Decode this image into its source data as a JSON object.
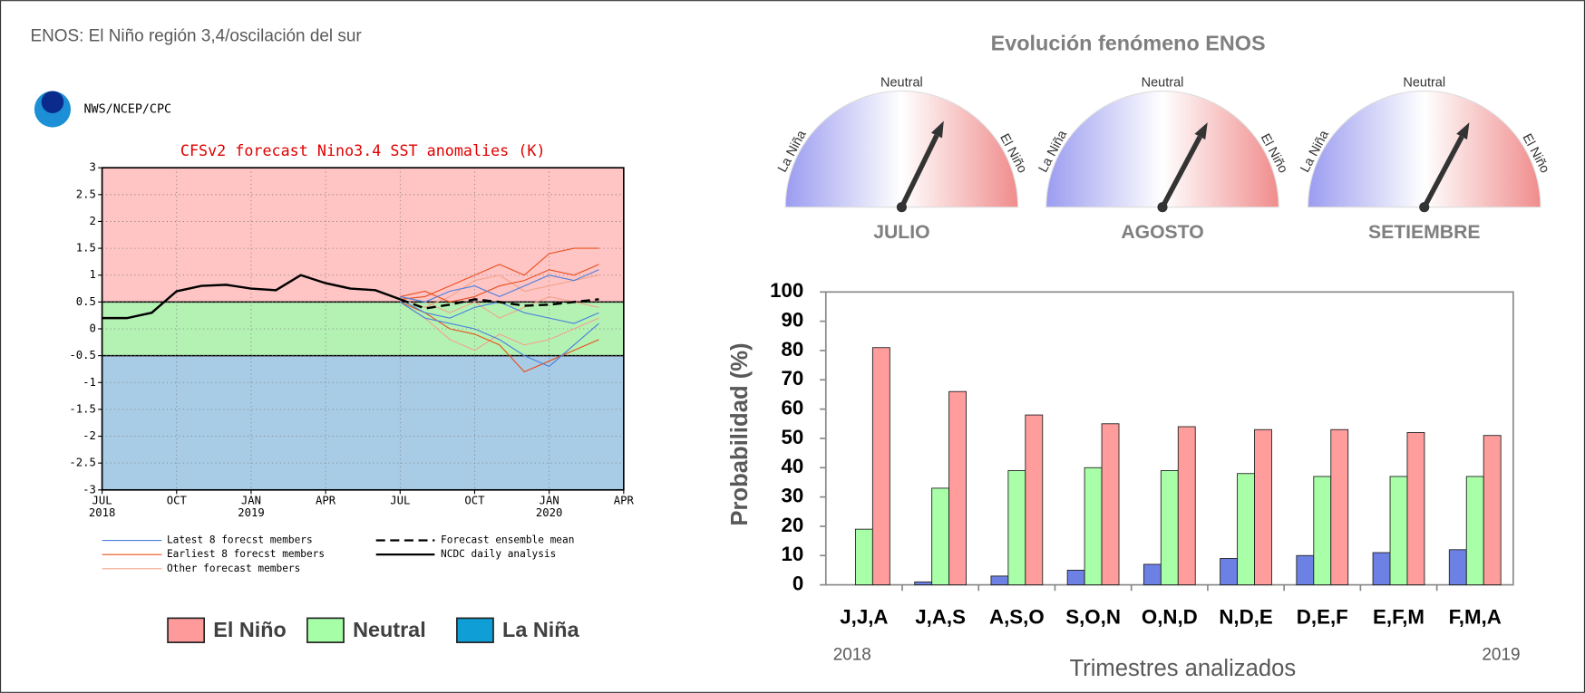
{
  "header": "ENOS: El Niño región 3,4/oscilación del sur",
  "chart_data": [
    {
      "type": "line",
      "source": "NWS/NCEP/CPC",
      "title": "CFSv2 forecast Nino3.4 SST anomalies (K)",
      "xlim": [
        0,
        21
      ],
      "xticks": [
        {
          "value": 0,
          "label": "JUL"
        },
        {
          "value": 3,
          "label": "OCT"
        },
        {
          "value": 6,
          "label": "JAN"
        },
        {
          "value": 9,
          "label": "APR"
        },
        {
          "value": 12,
          "label": "JUL"
        },
        {
          "value": 15,
          "label": "OCT"
        },
        {
          "value": 18,
          "label": "JAN"
        },
        {
          "value": 21,
          "label": "APR"
        }
      ],
      "xtick_years": [
        {
          "value": 0,
          "label": "2018"
        },
        {
          "value": 6,
          "label": "2019"
        },
        {
          "value": 18,
          "label": "2020"
        }
      ],
      "ylim": [
        -3,
        3
      ],
      "yticks": [
        3,
        2.5,
        2,
        1.5,
        1,
        0.5,
        0,
        -0.5,
        -1,
        -1.5,
        -2,
        -2.5,
        -3
      ],
      "grid": true,
      "bands": [
        {
          "name": "El Niño",
          "from": 0.5,
          "to": 3,
          "color": "#ffc4c4",
          "legend_color": "#ff9a9a"
        },
        {
          "name": "Neutral",
          "from": -0.5,
          "to": 0.5,
          "color": "#b4f2b4",
          "legend_color": "#a6ffa6"
        },
        {
          "name": "La Niña",
          "from": -3,
          "to": -0.5,
          "color": "#a8cce6",
          "legend_color": "#0f9ed5"
        }
      ],
      "series": [
        {
          "name": "Other forecast members",
          "color": "#f2a48c",
          "x": [
            12,
            13,
            14,
            15,
            16,
            17,
            18,
            19,
            20
          ],
          "values": [
            [
              0.55,
              0.4,
              0.6,
              0.9,
              1.0,
              0.7,
              0.8,
              0.9,
              1.0
            ],
            [
              0.5,
              0.2,
              -0.2,
              -0.4,
              -0.1,
              -0.3,
              -0.2,
              0.0,
              0.2
            ],
            [
              0.6,
              0.5,
              0.3,
              0.5,
              0.2,
              0.4,
              0.6,
              0.5,
              0.4
            ]
          ]
        },
        {
          "name": "Earliest 8 forecst members",
          "color": "#e8501e",
          "x": [
            12,
            13,
            14,
            15,
            16,
            17,
            18,
            19,
            20
          ],
          "values": [
            [
              0.55,
              0.6,
              0.8,
              1.0,
              1.2,
              1.0,
              1.4,
              1.5,
              1.5
            ],
            [
              0.5,
              0.3,
              0.0,
              -0.1,
              -0.3,
              -0.8,
              -0.6,
              -0.4,
              -0.2
            ],
            [
              0.6,
              0.7,
              0.5,
              0.6,
              0.8,
              0.9,
              1.1,
              1.0,
              1.2
            ]
          ]
        },
        {
          "name": "Latest 8 forecst members",
          "color": "#4a7fdc",
          "x": [
            12,
            13,
            14,
            15,
            16,
            17,
            18,
            19,
            20
          ],
          "values": [
            [
              0.55,
              0.3,
              0.2,
              0.4,
              0.5,
              0.3,
              0.2,
              0.1,
              0.3
            ],
            [
              0.5,
              0.2,
              0.1,
              0.0,
              -0.2,
              -0.5,
              -0.7,
              -0.3,
              0.1
            ],
            [
              0.6,
              0.5,
              0.7,
              0.8,
              0.6,
              0.8,
              1.0,
              0.9,
              1.1
            ]
          ]
        },
        {
          "name": "Forecast ensemble mean",
          "color": "#000000",
          "dash": true,
          "x": [
            12,
            13,
            14,
            15,
            16,
            17,
            18,
            19,
            20
          ],
          "values": [
            0.55,
            0.38,
            0.45,
            0.55,
            0.5,
            0.43,
            0.45,
            0.5,
            0.55
          ]
        },
        {
          "name": "NCDC daily analysis",
          "color": "#000000",
          "x": [
            0,
            1,
            2,
            3,
            4,
            5,
            6,
            7,
            8,
            9,
            10,
            11,
            12
          ],
          "values": [
            0.2,
            0.2,
            0.3,
            0.7,
            0.8,
            0.82,
            0.75,
            0.72,
            1.0,
            0.85,
            0.75,
            0.72,
            0.55
          ]
        }
      ]
    },
    {
      "type": "gauge",
      "title": "Evolución fenómeno ENOS",
      "scale_labels": [
        "La Niña",
        "Neutral",
        "El Niño"
      ],
      "lim": [
        -90,
        90
      ],
      "categories": [
        "JULIO",
        "AGOSTO",
        "SETIEMBRE"
      ],
      "values": [
        26,
        28,
        28
      ]
    },
    {
      "type": "bar",
      "ylabel": "Probabilidad (%)",
      "xlabel": "Trimestres analizados",
      "annotations": [
        "2018",
        "2019"
      ],
      "categories": [
        "J,J,A",
        "J,A,S",
        "A,S,O",
        "S,O,N",
        "O,N,D",
        "N,D,E",
        "D,E,F",
        "E,F,M",
        "F,M,A"
      ],
      "ylim": [
        0,
        100
      ],
      "yticks": [
        0,
        10,
        20,
        30,
        40,
        50,
        60,
        70,
        80,
        90,
        100
      ],
      "grid": false,
      "series": [
        {
          "color": "#6d80e4",
          "values": [
            0,
            1,
            3,
            5,
            7,
            9,
            10,
            11,
            12
          ]
        },
        {
          "color": "#a8ffa8",
          "values": [
            19,
            33,
            39,
            40,
            39,
            38,
            37,
            37,
            37
          ]
        },
        {
          "color": "#ff9c9c",
          "values": [
            81,
            66,
            58,
            55,
            54,
            53,
            53,
            52,
            51
          ]
        }
      ]
    }
  ]
}
